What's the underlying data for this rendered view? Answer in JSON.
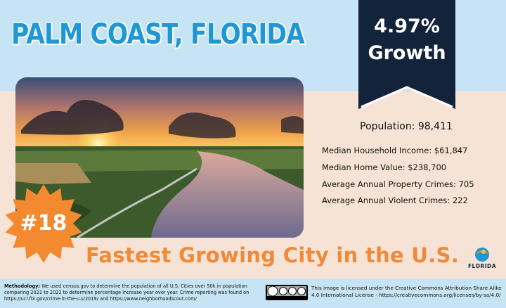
{
  "header": {
    "title": "PALM COAST, FLORIDA"
  },
  "banner": {
    "value": "4.97%",
    "label": "Growth"
  },
  "stats": {
    "population": "Population: 98,411",
    "items": [
      "Median Household Income: $61,847",
      "Median Home Value: $238,700",
      "Average Annual Property Crimes: 705",
      "Average Annual Violent Crimes: 222"
    ]
  },
  "badge": "#18",
  "tagline": "Fastest Growing City in the U.S.",
  "logo": "FLORIDA",
  "footer": {
    "methodology_label": "Methodology:",
    "methodology": "We used census.gov to determine the population of all U.S. Cities over 50k in population comparing 2021 to 2022 to determine percentage increase year over year. Crime reporting was found on https://ucr.fbi.gov/crime-in-the-u.s/2019/ and https://www.neighborhoodscout.com/",
    "license": "This image is licensed under the Creative Commons Attribution Share Alike 4.0 International License - https://creativecommons.org/licenses/by-sa/4.0/"
  }
}
